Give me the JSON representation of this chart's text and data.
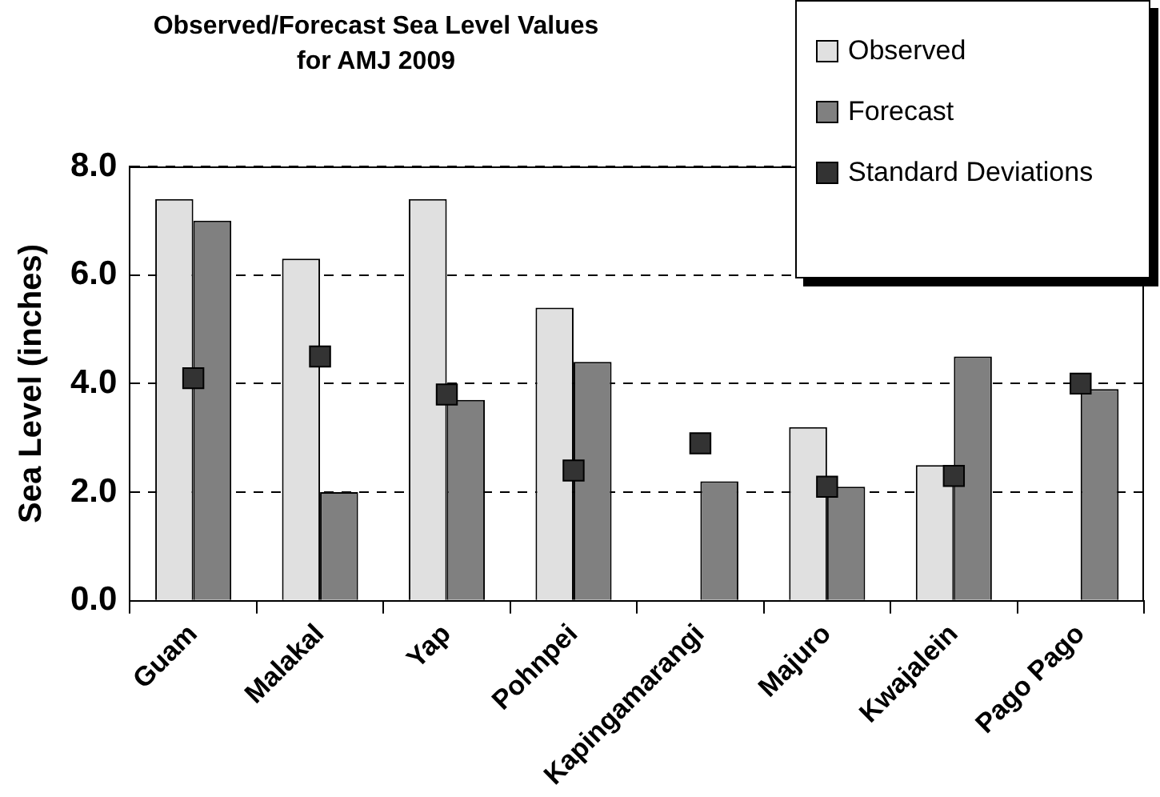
{
  "chart_data": {
    "type": "bar",
    "title": "Observed/Forecast Sea Level Values for AMJ 2009",
    "ylabel": "Sea Level (inches)",
    "categories": [
      "Guam",
      "Malakal",
      "Yap",
      "Pohnpei",
      "Kapingamarangi",
      "Majuro",
      "Kwajalein",
      "Pago Pago"
    ],
    "series": [
      {
        "name": "Observed",
        "color": "#e0e0e0",
        "values": [
          7.4,
          6.3,
          7.4,
          5.4,
          null,
          3.2,
          2.5,
          null
        ]
      },
      {
        "name": "Forecast",
        "color": "#808080",
        "values": [
          7.0,
          2.0,
          3.7,
          4.4,
          2.2,
          2.1,
          4.5,
          3.9
        ]
      },
      {
        "name": "Standard Deviations",
        "type": "scatter",
        "color": "#333333",
        "marker": "square",
        "x": [
          "Guam",
          "Malakal",
          "Yap",
          "Pohnpei",
          "Kapingamarangi",
          "Majuro",
          "Kwajalein",
          "Pago Pago"
        ],
        "values": [
          4.1,
          4.5,
          3.8,
          2.4,
          2.9,
          2.1,
          2.3,
          4.0
        ]
      }
    ],
    "ylim": [
      0,
      8
    ],
    "yticks": [
      {
        "value": 0,
        "label": "0.0"
      },
      {
        "value": 2,
        "label": "2.0"
      },
      {
        "value": 4,
        "label": "4.0"
      },
      {
        "value": 6,
        "label": "6.0"
      },
      {
        "value": 8,
        "label": "8.0"
      }
    ],
    "grid": "y",
    "line_style": "dashed",
    "legend": "top right"
  }
}
